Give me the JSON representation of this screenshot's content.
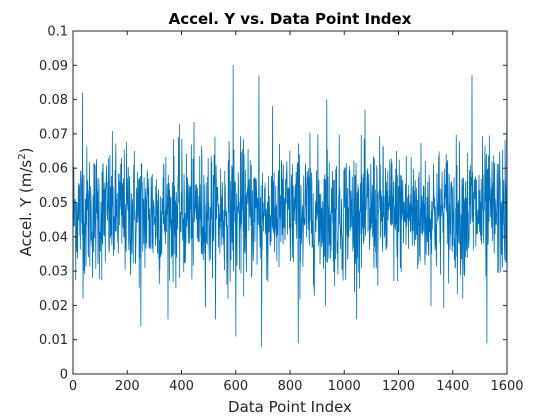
{
  "chart_data": {
    "type": "line",
    "title": "Accel. Y vs. Data Point Index",
    "xlabel": "Data Point Index",
    "ylabel": "Accel. Y (m/s^2)",
    "ylabel_main": "Accel. Y (m/s",
    "ylabel_sup": "2",
    "ylabel_close": ")",
    "xlim": [
      0,
      1600
    ],
    "ylim": [
      0,
      0.1
    ],
    "xticks": [
      "0",
      "200",
      "400",
      "600",
      "800",
      "1000",
      "1200",
      "1400",
      "1600"
    ],
    "yticks": [
      "0",
      "0.01",
      "0.02",
      "0.03",
      "0.04",
      "0.05",
      "0.06",
      "0.07",
      "0.08",
      "0.09",
      "0.1"
    ],
    "grid": false,
    "series": [
      {
        "color": "#0072bd",
        "n_points": 1600,
        "mean": 0.047,
        "std": 0.0095,
        "notable_points": [
          {
            "x": 0,
            "y": 0.075
          },
          {
            "x": 35,
            "y": 0.082
          },
          {
            "x": 250,
            "y": 0.014
          },
          {
            "x": 590,
            "y": 0.09
          },
          {
            "x": 600,
            "y": 0.011
          },
          {
            "x": 685,
            "y": 0.087
          },
          {
            "x": 695,
            "y": 0.008
          },
          {
            "x": 830,
            "y": 0.009
          },
          {
            "x": 935,
            "y": 0.08
          },
          {
            "x": 1470,
            "y": 0.087
          },
          {
            "x": 1525,
            "y": 0.009
          },
          {
            "x": 1598,
            "y": 0.072
          }
        ]
      }
    ]
  }
}
